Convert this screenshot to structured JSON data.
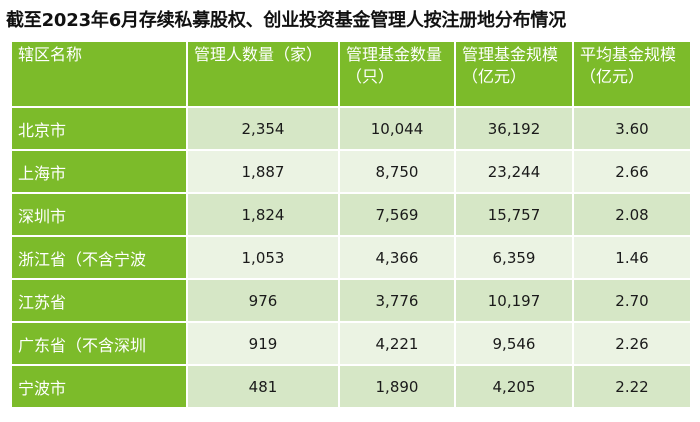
{
  "title": "截至2023年6月存续私募股权、创业投资基金管理人按注册地分布情况",
  "table": {
    "headers": [
      "辖区名称",
      "管理人数量（家）",
      "管理基金数量（只）",
      "管理基金规模（亿元）",
      "平均基金规模（亿元）"
    ],
    "rows": [
      {
        "region": "北京市",
        "managers": "2,354",
        "funds": "10,044",
        "scale": "36,192",
        "avg": "3.60"
      },
      {
        "region": "上海市",
        "managers": "1,887",
        "funds": "8,750",
        "scale": "23,244",
        "avg": "2.66"
      },
      {
        "region": "深圳市",
        "managers": "1,824",
        "funds": "7,569",
        "scale": "15,757",
        "avg": "2.08"
      },
      {
        "region": "浙江省（不含宁波",
        "managers": "1,053",
        "funds": "4,366",
        "scale": "6,359",
        "avg": "1.46"
      },
      {
        "region": "江苏省",
        "managers": "976",
        "funds": "3,776",
        "scale": "10,197",
        "avg": "2.70"
      },
      {
        "region": "广东省（不含深圳",
        "managers": "919",
        "funds": "4,221",
        "scale": "9,546",
        "avg": "2.26"
      },
      {
        "region": "宁波市",
        "managers": "481",
        "funds": "1,890",
        "scale": "4,205",
        "avg": "2.22"
      }
    ]
  },
  "colors": {
    "header_green": "#7cbb2a",
    "row_light_1": "#d6e7c6",
    "row_light_2": "#ebf3e3"
  }
}
